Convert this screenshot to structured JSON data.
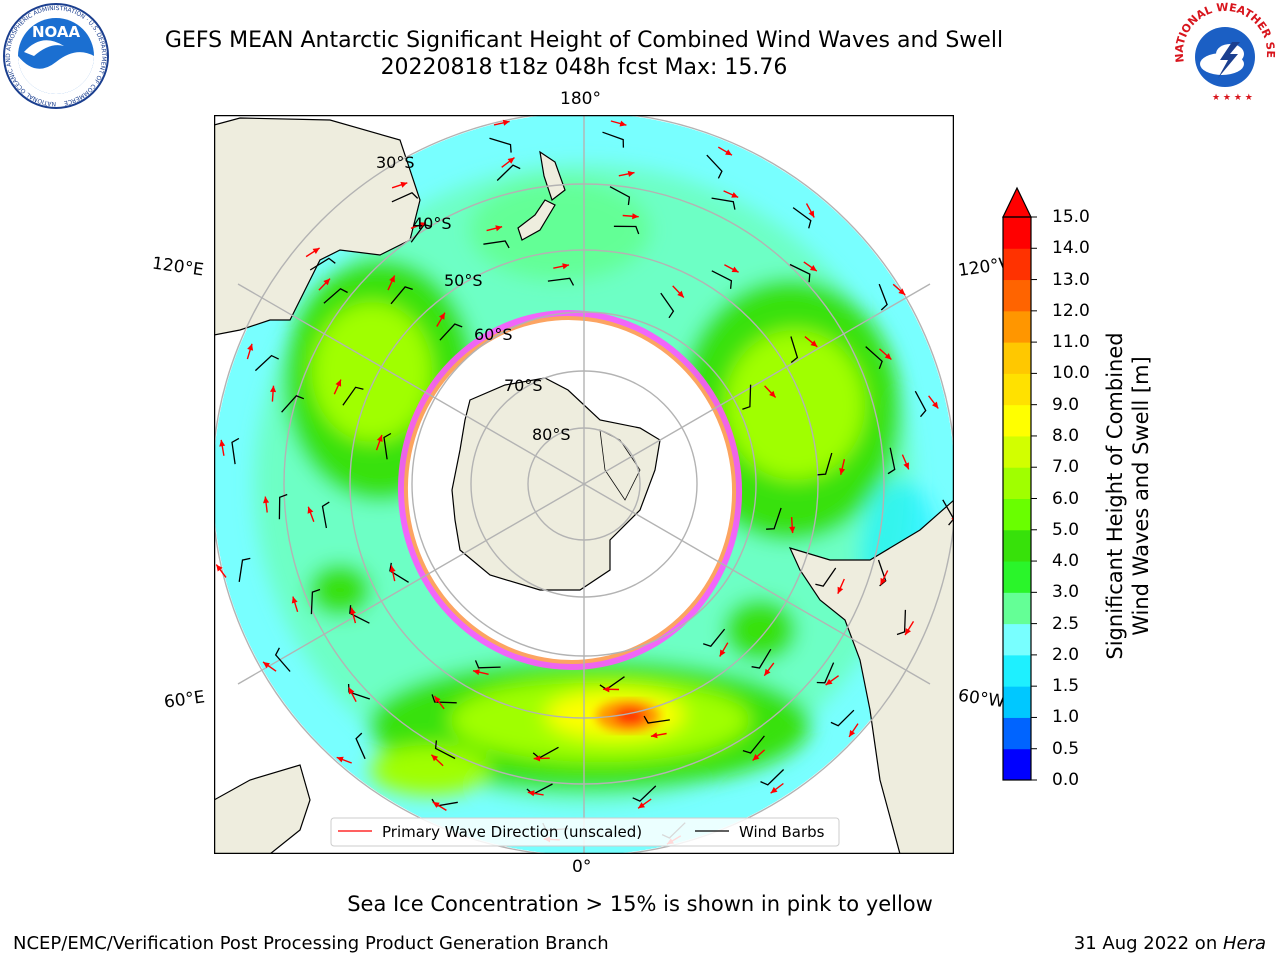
{
  "header": {
    "title_line1": "GEFS MEAN Antarctic Significant Height of Combined Wind Waves and Swell",
    "title_line2": "20220818 t18z 048h fcst   Max: 15.76"
  },
  "logos": {
    "left_center": "NOAA",
    "left_ring": "NATIONAL OCEANIC AND ATMOSPHERIC ADMINISTRATION · U.S. DEPARTMENT OF COMMERCE",
    "right_ring": "NATIONAL WEATHER SERVICE"
  },
  "map": {
    "lon_labels": {
      "top": "180°",
      "bottom": "0°",
      "upper_left": "120°E",
      "lower_left": "60°E",
      "upper_right": "120°W",
      "lower_right": "60°W"
    },
    "lat_labels": [
      "30°S",
      "40°S",
      "50°S",
      "60°S",
      "70°S",
      "80°S"
    ],
    "legend": {
      "wave_label": "Primary Wave Direction (unscaled)",
      "barb_label": "Wind Barbs",
      "wave_color": "#ff0000",
      "barb_color": "#000000"
    }
  },
  "colorbar": {
    "label_line1": "Significant Height of Combined",
    "label_line2": "Wind Waves and Swell [m]",
    "ticks": [
      "0.0",
      "0.5",
      "1.0",
      "1.5",
      "2.0",
      "2.5",
      "3.0",
      "4.0",
      "5.0",
      "6.0",
      "7.0",
      "8.0",
      "9.0",
      "10.0",
      "11.0",
      "12.0",
      "13.0",
      "14.0",
      "15.0"
    ],
    "colors": [
      "#0000ff",
      "#0064ff",
      "#00c8ff",
      "#1ef0ff",
      "#78ffff",
      "#64ff96",
      "#2af52a",
      "#37e10a",
      "#69ff00",
      "#a0ff00",
      "#d2ff00",
      "#ffff00",
      "#ffe100",
      "#ffc800",
      "#ff9600",
      "#ff6400",
      "#ff3200",
      "#ff0000"
    ],
    "max_value": "15.76"
  },
  "notes": {
    "sea_ice": "Sea Ice Concentration > 15% is shown in pink to yellow"
  },
  "footer": {
    "left": "NCEP/EMC/Verification Post Processing Product Generation Branch",
    "right_date": "31 Aug 2022 on ",
    "right_machine": "Hera"
  }
}
